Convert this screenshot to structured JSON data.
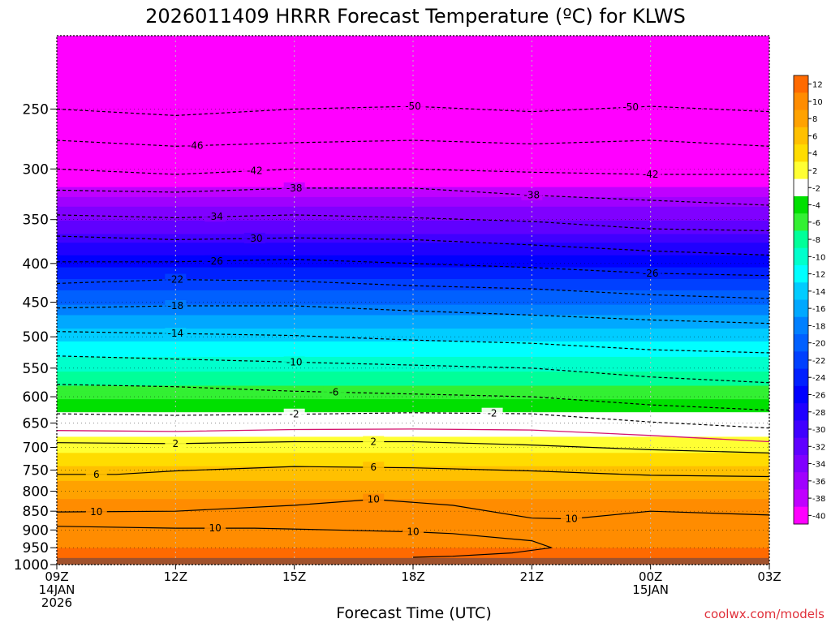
{
  "chart_data": {
    "type": "heatmap",
    "title": "2026011409 HRRR Forecast Temperature (ºC) for KLWS",
    "xlabel": "Forecast Time (UTC)",
    "credit": "coolwx.com/models",
    "y_scale": "log-pressure",
    "ylim": [
      1000,
      200
    ],
    "y_ticks": [
      250,
      300,
      350,
      400,
      450,
      500,
      550,
      600,
      650,
      700,
      750,
      800,
      850,
      900,
      950,
      1000
    ],
    "x_range_hours": [
      0,
      18
    ],
    "x_ticks": [
      {
        "hour": 0,
        "lines": [
          "09Z",
          "14JAN",
          "2026"
        ]
      },
      {
        "hour": 3,
        "lines": [
          "12Z"
        ]
      },
      {
        "hour": 6,
        "lines": [
          "15Z"
        ]
      },
      {
        "hour": 9,
        "lines": [
          "18Z"
        ]
      },
      {
        "hour": 12,
        "lines": [
          "21Z"
        ]
      },
      {
        "hour": 15,
        "lines": [
          "00Z",
          "15JAN"
        ]
      },
      {
        "hour": 18,
        "lines": [
          "03Z"
        ]
      }
    ],
    "ground_level_hpa": 980,
    "colorbar": {
      "levels": [
        12,
        10,
        8,
        6,
        4,
        2,
        -2,
        -4,
        -6,
        -8,
        -10,
        -12,
        -14,
        -16,
        -18,
        -20,
        -22,
        -24,
        -26,
        -28,
        -30,
        -32,
        -34,
        -36,
        -38,
        -40
      ],
      "colors": [
        "#ff6a00",
        "#ff8c00",
        "#ffa200",
        "#ffc000",
        "#ffdc00",
        "#ffff33",
        "#ffffff",
        "#00e000",
        "#33f033",
        "#00ff99",
        "#00ffcc",
        "#00ffff",
        "#00ccff",
        "#00a8ff",
        "#0080ff",
        "#0060ff",
        "#0040ff",
        "#0020ff",
        "#0000ff",
        "#2000ff",
        "#4000ff",
        "#6000ff",
        "#8000ff",
        "#a000ff",
        "#c000ff",
        "#ff00ff"
      ]
    },
    "temperature_profile": [
      {
        "p": 200,
        "t": -52
      },
      {
        "p": 250,
        "t": -50
      },
      {
        "p": 275,
        "t": -46
      },
      {
        "p": 300,
        "t": -42
      },
      {
        "p": 320,
        "t": -38
      },
      {
        "p": 345,
        "t": -34
      },
      {
        "p": 370,
        "t": -30
      },
      {
        "p": 400,
        "t": -26
      },
      {
        "p": 425,
        "t": -22
      },
      {
        "p": 460,
        "t": -18
      },
      {
        "p": 495,
        "t": -14
      },
      {
        "p": 545,
        "t": -10
      },
      {
        "p": 590,
        "t": -6
      },
      {
        "p": 640,
        "t": -2
      },
      {
        "p": 665,
        "t": 0
      },
      {
        "p": 695,
        "t": 2
      },
      {
        "p": 755,
        "t": 6
      },
      {
        "p": 840,
        "t": 10
      },
      {
        "p": 880,
        "t": 11
      },
      {
        "p": 920,
        "t": 10
      },
      {
        "p": 980,
        "t": 12
      }
    ],
    "contours": [
      {
        "value": -50,
        "label": "-50",
        "points": [
          [
            0,
            250
          ],
          [
            3,
            255
          ],
          [
            6,
            250
          ],
          [
            9,
            248
          ],
          [
            12,
            252
          ],
          [
            15,
            248
          ],
          [
            18,
            252
          ]
        ],
        "labels_at": [
          9,
          14.5
        ]
      },
      {
        "value": -46,
        "label": "-46",
        "points": [
          [
            0,
            275
          ],
          [
            3,
            280
          ],
          [
            6,
            277
          ],
          [
            9,
            275
          ],
          [
            12,
            278
          ],
          [
            15,
            275
          ],
          [
            18,
            280
          ]
        ],
        "labels_at": [
          3.5
        ]
      },
      {
        "value": -42,
        "label": "-42",
        "points": [
          [
            0,
            300
          ],
          [
            3,
            305
          ],
          [
            6,
            300
          ],
          [
            9,
            300
          ],
          [
            12,
            303
          ],
          [
            15,
            305
          ],
          [
            18,
            305
          ]
        ],
        "labels_at": [
          5,
          15
        ]
      },
      {
        "value": -38,
        "label": "-38",
        "points": [
          [
            0,
            320
          ],
          [
            3,
            322
          ],
          [
            6,
            318
          ],
          [
            9,
            318
          ],
          [
            12,
            325
          ],
          [
            15,
            330
          ],
          [
            18,
            335
          ]
        ],
        "labels_at": [
          6,
          12
        ]
      },
      {
        "value": -34,
        "label": "-34",
        "points": [
          [
            0,
            345
          ],
          [
            3,
            348
          ],
          [
            6,
            345
          ],
          [
            9,
            348
          ],
          [
            12,
            352
          ],
          [
            15,
            360
          ],
          [
            18,
            362
          ]
        ],
        "labels_at": [
          4
        ]
      },
      {
        "value": -30,
        "label": "-30",
        "points": [
          [
            0,
            368
          ],
          [
            3,
            372
          ],
          [
            6,
            370
          ],
          [
            9,
            372
          ],
          [
            12,
            378
          ],
          [
            15,
            385
          ],
          [
            18,
            390
          ]
        ],
        "labels_at": [
          5
        ]
      },
      {
        "value": -26,
        "label": "-26",
        "points": [
          [
            0,
            398
          ],
          [
            3,
            398
          ],
          [
            6,
            395
          ],
          [
            9,
            400
          ],
          [
            12,
            405
          ],
          [
            15,
            412
          ],
          [
            18,
            415
          ]
        ],
        "labels_at": [
          4,
          15
        ]
      },
      {
        "value": -22,
        "label": "-22",
        "points": [
          [
            0,
            425
          ],
          [
            3,
            420
          ],
          [
            6,
            422
          ],
          [
            9,
            428
          ],
          [
            12,
            432
          ],
          [
            15,
            440
          ],
          [
            18,
            445
          ]
        ],
        "labels_at": [
          3
        ]
      },
      {
        "value": -18,
        "label": "-18",
        "points": [
          [
            0,
            458
          ],
          [
            3,
            455
          ],
          [
            6,
            455
          ],
          [
            9,
            462
          ],
          [
            12,
            468
          ],
          [
            15,
            475
          ],
          [
            18,
            480
          ]
        ],
        "labels_at": [
          3
        ]
      },
      {
        "value": -14,
        "label": "-14",
        "points": [
          [
            0,
            492
          ],
          [
            3,
            495
          ],
          [
            6,
            498
          ],
          [
            9,
            505
          ],
          [
            12,
            510
          ],
          [
            15,
            520
          ],
          [
            18,
            525
          ]
        ],
        "labels_at": [
          3
        ]
      },
      {
        "value": -10,
        "label": "-10",
        "points": [
          [
            0,
            530
          ],
          [
            3,
            535
          ],
          [
            6,
            540
          ],
          [
            9,
            545
          ],
          [
            12,
            550
          ],
          [
            15,
            565
          ],
          [
            18,
            575
          ]
        ],
        "labels_at": [
          6
        ]
      },
      {
        "value": -6,
        "label": "-6",
        "points": [
          [
            0,
            578
          ],
          [
            3,
            582
          ],
          [
            6,
            590
          ],
          [
            9,
            595
          ],
          [
            12,
            600
          ],
          [
            15,
            615
          ],
          [
            18,
            625
          ]
        ],
        "labels_at": [
          7
        ]
      },
      {
        "value": -2,
        "label": "-2",
        "points": [
          [
            0,
            632
          ],
          [
            3,
            635
          ],
          [
            6,
            633
          ],
          [
            9,
            630
          ],
          [
            12,
            632
          ],
          [
            15,
            648
          ],
          [
            18,
            660
          ]
        ],
        "labels_at": [
          6,
          11
        ]
      },
      {
        "value": 2,
        "label": "2",
        "points": [
          [
            0,
            690
          ],
          [
            3,
            692
          ],
          [
            6,
            688
          ],
          [
            9,
            688
          ],
          [
            12,
            695
          ],
          [
            15,
            705
          ],
          [
            18,
            712
          ]
        ],
        "labels_at": [
          3,
          8
        ]
      },
      {
        "value": 6,
        "label": "6",
        "points": [
          [
            0,
            760
          ],
          [
            1.5,
            760
          ],
          [
            3,
            752
          ],
          [
            6,
            742
          ],
          [
            9,
            745
          ],
          [
            12,
            752
          ],
          [
            15,
            762
          ],
          [
            18,
            765
          ]
        ],
        "labels_at": [
          1,
          8
        ]
      },
      {
        "value": 10,
        "label": "10",
        "points": [
          [
            0,
            852
          ],
          [
            3,
            850
          ],
          [
            6,
            835
          ],
          [
            8,
            820
          ],
          [
            10,
            835
          ],
          [
            12,
            868
          ],
          [
            13,
            870
          ],
          [
            15,
            850
          ],
          [
            18,
            860
          ]
        ],
        "labels_at": [
          1,
          8,
          13
        ]
      },
      {
        "value": 10,
        "label": "10",
        "points": [
          [
            0,
            890
          ],
          [
            3,
            895
          ],
          [
            5,
            895
          ],
          [
            7,
            900
          ],
          [
            9,
            905
          ],
          [
            10,
            910
          ],
          [
            12,
            930
          ],
          [
            12.5,
            950
          ],
          [
            11.5,
            965
          ],
          [
            10,
            975
          ],
          [
            9,
            978
          ]
        ],
        "labels_at": [
          4,
          9
        ]
      }
    ]
  }
}
